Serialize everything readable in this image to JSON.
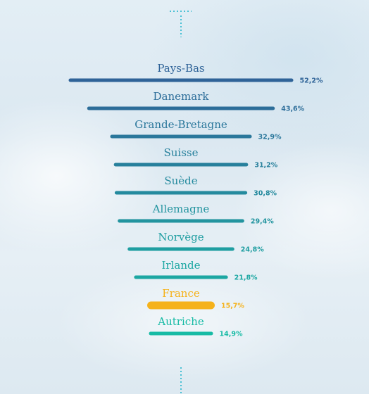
{
  "chart_data": {
    "type": "bar",
    "orientation": "horizontal-centered",
    "categories": [
      "Pays-Bas",
      "Danemark",
      "Grande-Bretagne",
      "Suisse",
      "Suède",
      "Allemagne",
      "Norvège",
      "Irlande",
      "France",
      "Autriche"
    ],
    "values": [
      52.2,
      43.6,
      32.9,
      31.2,
      30.8,
      29.4,
      24.8,
      21.8,
      15.7,
      14.9
    ],
    "value_labels": [
      "52,2%",
      "43,6%",
      "32,9%",
      "31,2%",
      "30,8%",
      "29,4%",
      "24,8%",
      "21,8%",
      "15,7%",
      "14,9%"
    ],
    "unit": "%",
    "highlight": "France",
    "grid": false,
    "legend": "none",
    "colors": {
      "gradient_top": "#2f6398",
      "gradient_bottom": "#17bba5",
      "highlight": "#f5b21b",
      "dotted_line": "#48c0d4"
    }
  }
}
